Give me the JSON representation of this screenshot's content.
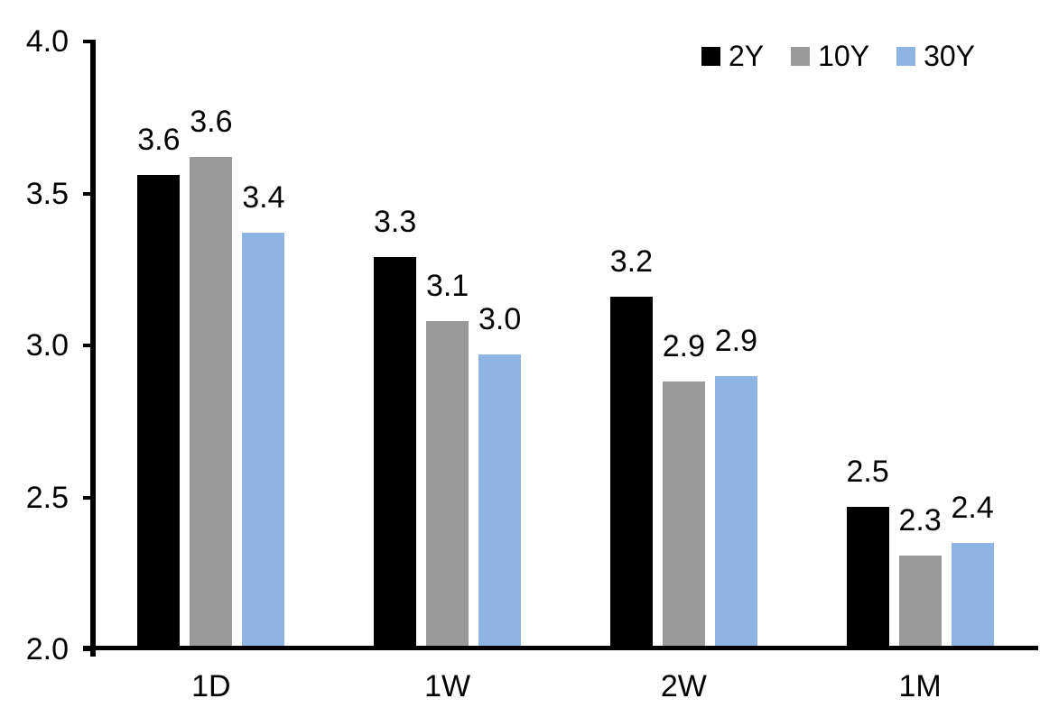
{
  "chart_data": {
    "type": "bar",
    "title": "",
    "categories": [
      "1D",
      "1W",
      "2W",
      "1M"
    ],
    "series": [
      {
        "name": "2Y",
        "color": "#000000",
        "values": [
          3.56,
          3.29,
          3.16,
          2.47
        ],
        "labels": [
          "3.6",
          "3.3",
          "3.2",
          "2.5"
        ]
      },
      {
        "name": "10Y",
        "color": "#9A9A9A",
        "values": [
          3.62,
          3.08,
          2.88,
          2.31
        ],
        "labels": [
          "3.6",
          "3.1",
          "2.9",
          "2.3"
        ]
      },
      {
        "name": "30Y",
        "color": "#8DB4E2",
        "values": [
          3.37,
          2.97,
          2.9,
          2.35
        ],
        "labels": [
          "3.4",
          "3.0",
          "2.9",
          "2.4"
        ]
      }
    ],
    "ylim": [
      2.0,
      4.0
    ],
    "yticks": [
      "4.0",
      "3.5",
      "3.0",
      "2.5",
      "2.0"
    ],
    "xlabel": "",
    "ylabel": "",
    "grid": false,
    "legend_position": "top-right",
    "axis_color": "#000000",
    "background_color": "#FFFFFF"
  }
}
